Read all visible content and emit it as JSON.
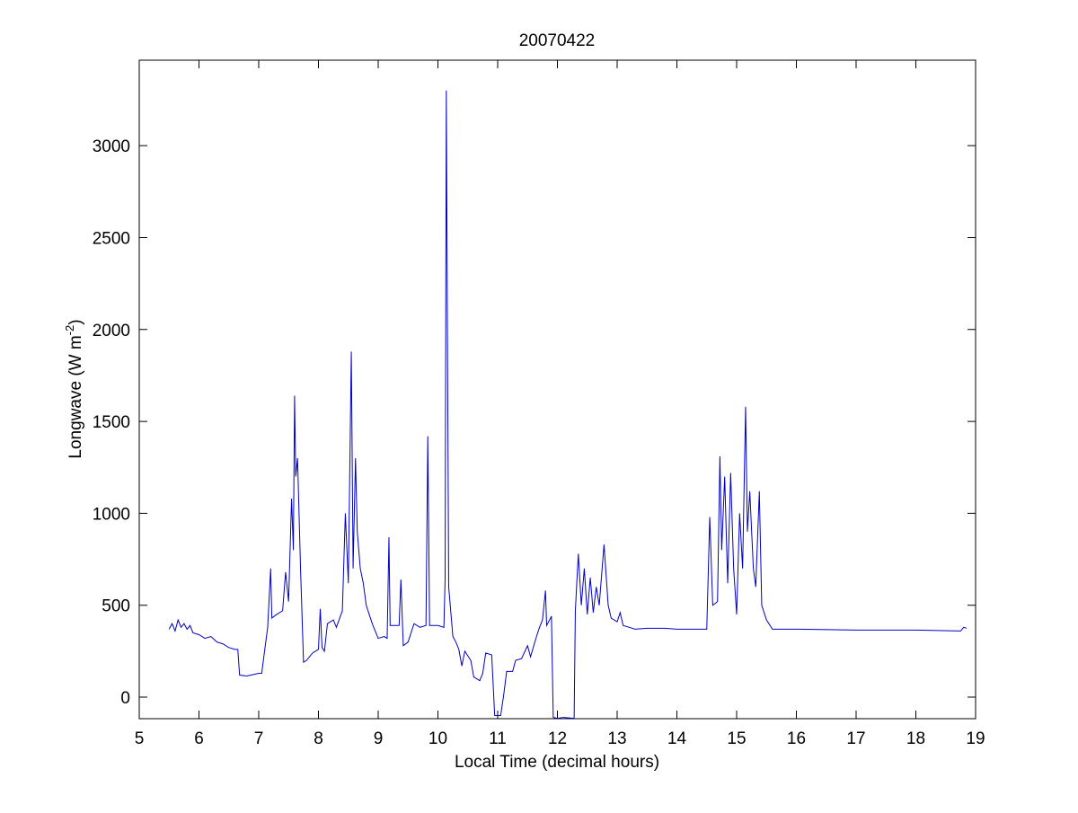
{
  "chart_data": {
    "type": "line",
    "title": "20070422",
    "xlabel": "Local Time (decimal hours)",
    "ylabel": [
      "Longwave (W m",
      "-2",
      ")"
    ],
    "x": [
      5.5,
      5.55,
      5.6,
      5.65,
      5.7,
      5.75,
      5.8,
      5.85,
      5.9,
      6.0,
      6.1,
      6.2,
      6.3,
      6.4,
      6.5,
      6.6,
      6.65,
      6.68,
      6.8,
      7.0,
      7.05,
      7.15,
      7.2,
      7.22,
      7.3,
      7.4,
      7.45,
      7.5,
      7.55,
      7.58,
      7.6,
      7.62,
      7.65,
      7.7,
      7.75,
      7.8,
      7.9,
      8.0,
      8.03,
      8.06,
      8.1,
      8.15,
      8.25,
      8.3,
      8.4,
      8.45,
      8.5,
      8.55,
      8.58,
      8.62,
      8.65,
      8.7,
      8.75,
      8.8,
      8.9,
      9.0,
      9.1,
      9.15,
      9.18,
      9.2,
      9.35,
      9.38,
      9.42,
      9.5,
      9.6,
      9.7,
      9.8,
      9.83,
      9.86,
      10.0,
      10.1,
      10.12,
      10.14,
      10.16,
      10.18,
      10.25,
      10.3,
      10.35,
      10.4,
      10.45,
      10.55,
      10.6,
      10.7,
      10.75,
      10.8,
      10.9,
      10.95,
      11.05,
      11.1,
      11.15,
      11.25,
      11.3,
      11.4,
      11.5,
      11.55,
      11.65,
      11.7,
      11.75,
      11.8,
      11.82,
      11.9,
      11.93,
      12.0,
      12.1,
      12.28,
      12.3,
      12.35,
      12.4,
      12.45,
      12.5,
      12.55,
      12.6,
      12.65,
      12.7,
      12.78,
      12.85,
      12.9,
      13.0,
      13.05,
      13.1,
      13.2,
      13.3,
      13.5,
      13.8,
      14.0,
      14.5,
      14.55,
      14.6,
      14.68,
      14.72,
      14.75,
      14.8,
      14.85,
      14.9,
      14.95,
      15.0,
      15.05,
      15.1,
      15.15,
      15.18,
      15.22,
      15.28,
      15.32,
      15.38,
      15.42,
      15.5,
      15.6,
      15.7,
      16.0,
      17.0,
      18.0,
      18.75,
      18.8,
      18.85
    ],
    "series": [
      {
        "color": "#0000c8",
        "values": [
          370,
          400,
          360,
          420,
          380,
          400,
          370,
          390,
          350,
          340,
          320,
          330,
          300,
          290,
          270,
          260,
          260,
          120,
          115,
          130,
          130,
          380,
          700,
          430,
          450,
          470,
          680,
          520,
          1080,
          800,
          1640,
          1200,
          1300,
          700,
          190,
          200,
          240,
          260,
          480,
          270,
          250,
          400,
          420,
          380,
          470,
          1000,
          620,
          1880,
          700,
          1300,
          900,
          700,
          620,
          500,
          400,
          320,
          330,
          320,
          870,
          390,
          390,
          640,
          280,
          300,
          400,
          380,
          390,
          1420,
          390,
          390,
          380,
          640,
          3300,
          1920,
          600,
          330,
          300,
          260,
          170,
          250,
          200,
          110,
          90,
          130,
          240,
          230,
          -100,
          -100,
          10,
          140,
          140,
          200,
          210,
          280,
          220,
          330,
          380,
          420,
          580,
          390,
          440,
          -110,
          -115,
          -110,
          -115,
          470,
          780,
          500,
          700,
          450,
          650,
          460,
          600,
          500,
          830,
          500,
          430,
          410,
          460,
          390,
          380,
          370,
          375,
          375,
          370,
          370,
          980,
          500,
          520,
          1310,
          800,
          1200,
          620,
          1220,
          700,
          450,
          1000,
          700,
          1580,
          900,
          1120,
          700,
          600,
          1120,
          500,
          420,
          370,
          370,
          370,
          365,
          365,
          360,
          380,
          375
        ]
      }
    ],
    "xlim": [
      5,
      19
    ],
    "xticks": [
      5,
      6,
      7,
      8,
      9,
      10,
      11,
      12,
      13,
      14,
      15,
      16,
      17,
      18,
      19
    ],
    "ylim": [
      -117,
      3465
    ],
    "yticks": [
      0,
      500,
      1000,
      1500,
      2000,
      2500,
      3000
    ]
  }
}
